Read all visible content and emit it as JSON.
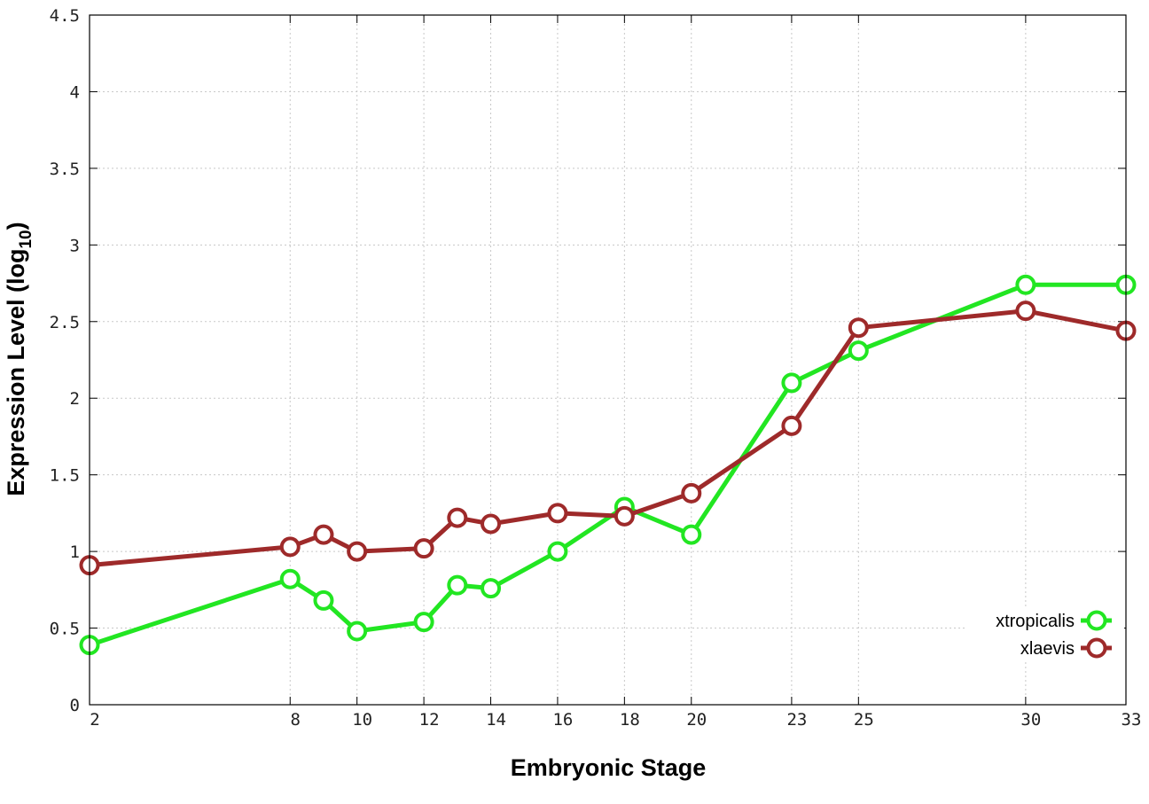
{
  "chart_data": {
    "type": "line",
    "xlabel": "Embryonic Stage",
    "ylabel": {
      "prefix": "Expression Level (log",
      "subscript": "10",
      "suffix": ")"
    },
    "x_ticks": [
      2,
      8,
      10,
      12,
      14,
      16,
      18,
      20,
      23,
      25,
      30,
      33
    ],
    "y_ticks": [
      "0",
      "0.5",
      "1",
      "1.5",
      "2",
      "2.5",
      "3",
      "3.5",
      "4",
      "4.5"
    ],
    "xlim": [
      2,
      33
    ],
    "ylim": [
      0,
      4.5
    ],
    "grid": true,
    "legend_position": "bottom-right",
    "x": [
      2,
      8,
      9,
      10,
      12,
      13,
      14,
      16,
      18,
      20,
      23,
      25,
      30,
      33
    ],
    "series": [
      {
        "name": "xtropicalis",
        "color": "#22e622",
        "values": [
          0.39,
          0.82,
          0.68,
          0.48,
          0.54,
          0.78,
          0.76,
          1.0,
          1.29,
          1.11,
          2.1,
          2.31,
          2.74,
          2.74
        ]
      },
      {
        "name": "xlaevis",
        "color": "#9e2a2a",
        "values": [
          0.91,
          1.03,
          1.11,
          1.0,
          1.02,
          1.22,
          1.18,
          1.25,
          1.23,
          1.38,
          1.82,
          2.46,
          2.57,
          2.44
        ]
      }
    ]
  }
}
